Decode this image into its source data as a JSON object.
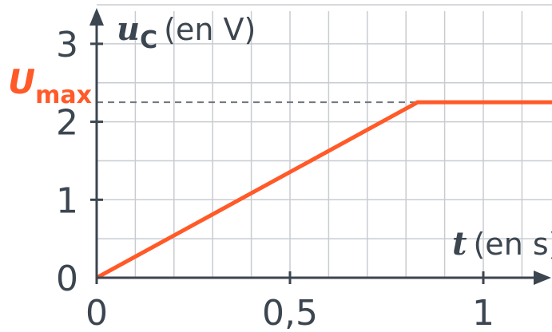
{
  "colors": {
    "curve": "#ff5a28",
    "axis": "#3c4650",
    "grid": "#c8ccd0",
    "text": "#3c4650"
  },
  "chart_data": {
    "type": "line",
    "xlabel": {
      "var": "t",
      "unit": "(en s)"
    },
    "ylabel": {
      "var": "u",
      "sub": "C",
      "unit": "(en V)"
    },
    "x_ticks": [
      {
        "value": 0,
        "label": "0"
      },
      {
        "value": 0.5,
        "label": "0,5"
      },
      {
        "value": 1,
        "label": "1"
      }
    ],
    "y_ticks": [
      {
        "value": 0,
        "label": "0"
      },
      {
        "value": 1,
        "label": "1"
      },
      {
        "value": 2,
        "label": "2"
      },
      {
        "value": 3,
        "label": "3"
      }
    ],
    "xlim": [
      0,
      1.18
    ],
    "ylim": [
      0,
      3.3
    ],
    "grid": true,
    "grid_step_x": 0.1,
    "grid_step_y": 0.5,
    "series": [
      {
        "x": [
          0,
          0.83,
          1.18
        ],
        "y": [
          0,
          2.25,
          2.25
        ]
      }
    ],
    "annotation": {
      "label": "U",
      "sub": "max",
      "value": 2.25
    }
  }
}
